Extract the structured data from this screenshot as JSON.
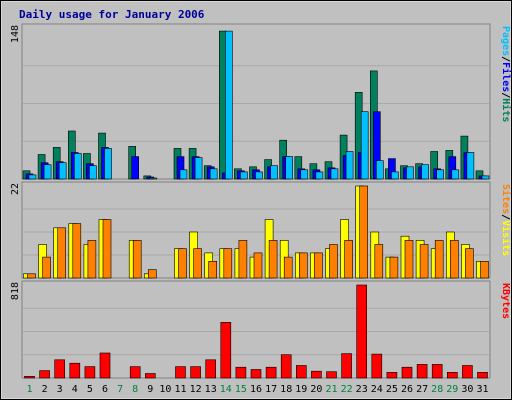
{
  "chart_data": {
    "type": "bar",
    "title": "Daily usage for January 2006",
    "days": [
      "1",
      "2",
      "3",
      "4",
      "5",
      "6",
      "7",
      "8",
      "9",
      "10",
      "11",
      "12",
      "13",
      "14",
      "15",
      "16",
      "17",
      "18",
      "19",
      "20",
      "21",
      "22",
      "23",
      "24",
      "25",
      "26",
      "27",
      "28",
      "29",
      "30",
      "31"
    ],
    "weekend_days": [
      "1",
      "7",
      "8",
      "14",
      "15",
      "21",
      "22",
      "28",
      "29"
    ],
    "colors": {
      "background": "#c0c0c0",
      "frame": "#d8d8d8",
      "title": "#000099",
      "weekday": "#000000",
      "weekend": "#008040",
      "hits": "#00805c",
      "files": "#0000ff",
      "pages": "#00c0ff",
      "visits": "#ffff00",
      "sites": "#ff8000",
      "kbytes": "#ff0000"
    },
    "panels": [
      {
        "id": "hits-files-pages",
        "max_label": "148",
        "ymax": 148,
        "legend": [
          "Pages",
          "/",
          "Files",
          "/",
          "Hits"
        ],
        "series": [
          {
            "name": "Hits",
            "values": [
              8,
              24,
              31,
              47,
              25,
              45,
              0,
              32,
              3,
              0,
              30,
              30,
              13,
              145,
              10,
              12,
              19,
              38,
              22,
              15,
              17,
              43,
              85,
              106,
              10,
              13,
              15,
              27,
              28,
              42,
              8
            ]
          },
          {
            "name": "Files",
            "values": [
              5,
              16,
              17,
              26,
              15,
              31,
              0,
              22,
              2,
              0,
              22,
              22,
              12,
              6,
              8,
              9,
              12,
              22,
              10,
              9,
              11,
              23,
              26,
              66,
              20,
              11,
              12,
              10,
              22,
              26,
              3
            ]
          },
          {
            "name": "Pages",
            "values": [
              4,
              14,
              16,
              25,
              13,
              30,
              0,
              0,
              1,
              0,
              9,
              21,
              10,
              145,
              7,
              7,
              13,
              22,
              9,
              7,
              10,
              27,
              66,
              18,
              7,
              12,
              14,
              9,
              9,
              26,
              3
            ]
          }
        ]
      },
      {
        "id": "visits-sites",
        "max_label": "22",
        "ymax": 22,
        "legend": [
          "Sites",
          "/",
          "Visits"
        ],
        "series": [
          {
            "name": "Visits",
            "values": [
              1,
              8,
              12,
              13,
              8,
              14,
              0,
              9,
              1,
              0,
              7,
              11,
              6,
              7,
              7,
              5,
              14,
              9,
              6,
              6,
              7,
              14,
              22,
              11,
              5,
              10,
              9,
              7,
              11,
              8,
              4
            ]
          },
          {
            "name": "Sites",
            "values": [
              1,
              5,
              12,
              13,
              9,
              14,
              0,
              9,
              2,
              0,
              7,
              7,
              4,
              7,
              9,
              6,
              9,
              5,
              6,
              6,
              8,
              9,
              22,
              8,
              5,
              9,
              8,
              9,
              9,
              7,
              4
            ]
          }
        ]
      },
      {
        "id": "kbytes",
        "max_label": "818",
        "ymax": 818,
        "legend": [
          "KBytes"
        ],
        "series": [
          {
            "name": "KBytes",
            "values": [
              15,
              65,
              160,
              130,
              100,
              220,
              0,
              100,
              40,
              0,
              100,
              100,
              160,
              490,
              95,
              75,
              95,
              205,
              110,
              60,
              55,
              215,
              818,
              210,
              50,
              95,
              120,
              120,
              50,
              110,
              50
            ]
          }
        ]
      }
    ]
  }
}
